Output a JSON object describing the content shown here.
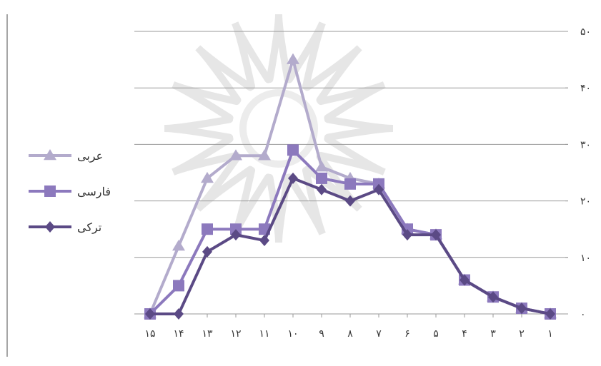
{
  "chart_data": {
    "type": "line",
    "title": "",
    "xlabel": "",
    "ylabel": "",
    "x_direction": "right-to-left",
    "y_axis_side": "right",
    "legend_placement": "left",
    "grid": true,
    "ylim": [
      0,
      50
    ],
    "y_ticks": [
      "۰",
      "۱۰",
      "۲۰",
      "۳۰",
      "۴۰",
      "۵۰"
    ],
    "y_tick_values": [
      0,
      10,
      20,
      30,
      40,
      50
    ],
    "x_values": [
      1,
      2,
      3,
      4,
      5,
      6,
      7,
      8,
      9,
      10,
      11,
      12,
      13,
      14,
      15
    ],
    "x_tick_labels": [
      "۱",
      "۲",
      "۳",
      "۴",
      "۵",
      "۶",
      "۷",
      "۸",
      "۹",
      "۱۰",
      "۱۱",
      "۱۲",
      "۱۳",
      "۱۴",
      "۱۵"
    ],
    "series": [
      {
        "name": "عربی",
        "marker": "triangle",
        "color": "#b3abcc",
        "values": [
          0,
          1,
          3,
          6,
          14,
          15,
          23,
          24,
          26,
          45,
          28,
          28,
          24,
          12,
          0
        ]
      },
      {
        "name": "فارسی",
        "marker": "square",
        "color": "#8c79bd",
        "values": [
          0,
          1,
          3,
          6,
          14,
          15,
          23,
          23,
          24,
          29,
          15,
          15,
          15,
          5,
          0
        ]
      },
      {
        "name": "ترکی",
        "marker": "diamond",
        "color": "#5b4a85",
        "values": [
          0,
          1,
          3,
          6,
          14,
          14,
          22,
          20,
          22,
          24,
          13,
          14,
          11,
          0,
          0
        ]
      }
    ]
  }
}
